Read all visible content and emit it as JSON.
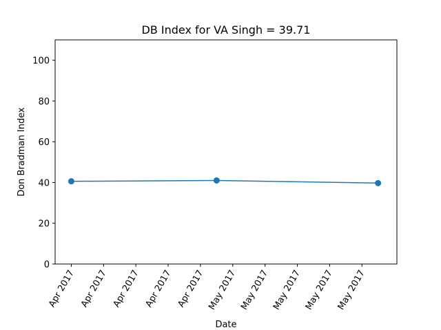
{
  "chart_data": {
    "type": "line",
    "title": "DB Index for VA Singh = 39.71",
    "xlabel": "Date",
    "ylabel": "Don Bradman Index",
    "ylim": [
      0,
      110
    ],
    "yticks": [
      0,
      20,
      40,
      60,
      80,
      100
    ],
    "xticks": [
      {
        "date": "2017-04-25",
        "label": "Apr 2017"
      },
      {
        "date": "2017-04-26",
        "label": "Apr 2017"
      },
      {
        "date": "2017-04-27",
        "label": "Apr 2017"
      },
      {
        "date": "2017-04-28",
        "label": "Apr 2017"
      },
      {
        "date": "2017-04-29",
        "label": "Apr 2017"
      },
      {
        "date": "2017-04-30",
        "label": "May 2017"
      },
      {
        "date": "2017-05-01",
        "label": "May 2017"
      },
      {
        "date": "2017-05-02",
        "label": "May 2017"
      },
      {
        "date": "2017-05-03",
        "label": "May 2017"
      },
      {
        "date": "2017-05-04",
        "label": "May 2017"
      }
    ],
    "xlim": [
      "2017-04-24T12:00",
      "2017-05-05T02:00"
    ],
    "series": [
      {
        "color": "#1f77b4",
        "marker": "circle",
        "points": [
          {
            "x": "2017-04-25",
            "y": 40.6
          },
          {
            "x": "2017-04-29T12:00",
            "y": 41.0
          },
          {
            "x": "2017-05-04T12:00",
            "y": 39.71
          }
        ]
      }
    ],
    "grid": false
  }
}
